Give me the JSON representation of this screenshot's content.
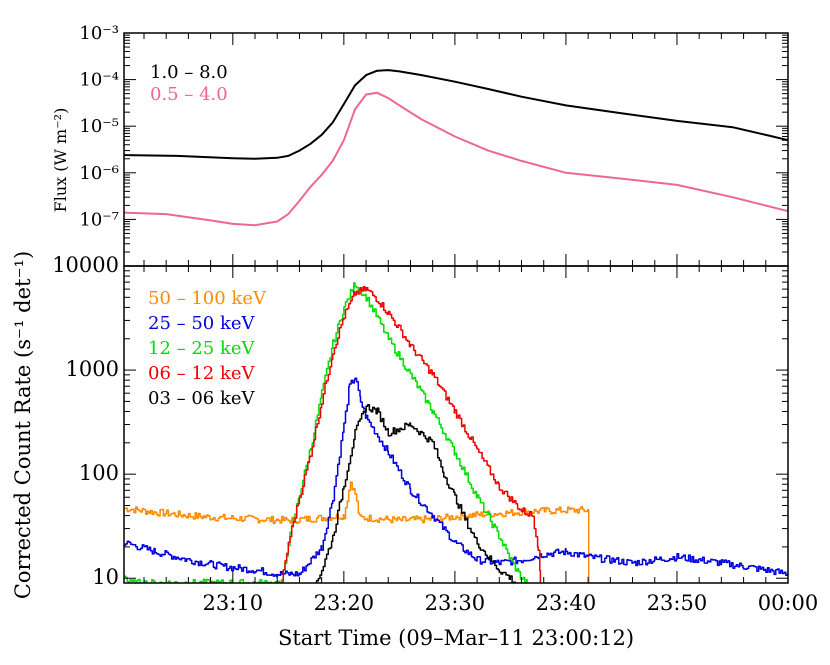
{
  "chart_data": [
    {
      "type": "line",
      "ylabel": "Flux (W m⁻²)",
      "xlabel": "",
      "yscale": "log",
      "ylim": [
        1e-08,
        0.001
      ],
      "xlim": [
        0.2,
        60
      ],
      "yticks": [
        {
          "label": "10⁻³",
          "value": 0.001
        },
        {
          "label": "10⁻⁴",
          "value": 0.0001
        },
        {
          "label": "10⁻⁵",
          "value": 1e-05
        },
        {
          "label": "10⁻⁶",
          "value": 1e-06
        },
        {
          "label": "10⁻⁷",
          "value": 1e-07
        }
      ],
      "legend": "top-left",
      "series": [
        {
          "name": "1.0 – 8.0",
          "color": "#000000",
          "x": [
            0.2,
            5,
            10,
            12,
            14,
            15,
            16,
            17,
            18,
            19,
            20,
            21,
            22,
            23,
            24,
            25,
            27,
            30,
            33,
            36,
            40,
            45,
            50,
            55,
            58,
            60
          ],
          "y": [
            2.4e-06,
            2.3e-06,
            2.05e-06,
            2e-06,
            2.1e-06,
            2.3e-06,
            3e-06,
            4.2e-06,
            6.5e-06,
            1.2e-05,
            3e-05,
            7.5e-05,
            0.000125,
            0.000155,
            0.00016,
            0.00015,
            0.000125,
            9e-05,
            6.3e-05,
            4.3e-05,
            2.8e-05,
            1.9e-05,
            1.3e-05,
            9.5e-06,
            6.5e-06,
            5e-06
          ]
        },
        {
          "name": "0.5 – 4.0",
          "color": "#ee6699",
          "x": [
            0.2,
            4,
            8,
            10,
            12,
            14,
            15,
            16,
            17,
            18,
            19,
            20,
            21,
            22,
            23,
            24,
            25,
            27,
            30,
            33,
            36,
            40,
            45,
            50,
            55,
            60
          ],
          "y": [
            1.4e-07,
            1.3e-07,
            9.5e-08,
            8e-08,
            7.5e-08,
            9e-08,
            1.3e-07,
            2.5e-07,
            5e-07,
            9e-07,
            1.8e-06,
            5e-06,
            2.3e-05,
            4.8e-05,
            5.2e-05,
            4e-05,
            2.8e-05,
            1.4e-05,
            6e-06,
            3e-06,
            1.8e-06,
            1e-06,
            7.5e-07,
            5.5e-07,
            3e-07,
            1.5e-07
          ]
        }
      ]
    },
    {
      "type": "line",
      "ylabel": "Corrected Count Rate (s⁻¹ det⁻¹)",
      "xlabel": "Start Time (09–Mar–11 23:00:12)",
      "yscale": "log",
      "ylim": [
        9,
        10000
      ],
      "xlim": [
        0.2,
        60
      ],
      "yticks": [
        {
          "label": "10",
          "value": 10
        },
        {
          "label": "100",
          "value": 100
        },
        {
          "label": "1000",
          "value": 1000
        },
        {
          "label": "10000",
          "value": 10000
        }
      ],
      "xticks": [
        {
          "label": "23:10",
          "value": 10
        },
        {
          "label": "23:20",
          "value": 20
        },
        {
          "label": "23:30",
          "value": 30
        },
        {
          "label": "23:40",
          "value": 40
        },
        {
          "label": "23:50",
          "value": 50
        },
        {
          "label": "00:00",
          "value": 60
        }
      ],
      "legend": "top-left",
      "series": [
        {
          "name": "50 – 100 keV",
          "color": "#ff8c00",
          "x": [
            0.2,
            3,
            6,
            9,
            12,
            15,
            18,
            20,
            20.6,
            21,
            21.4,
            22,
            25,
            28,
            31,
            34,
            37,
            40,
            42,
            42.05
          ],
          "y": [
            47,
            43,
            40,
            38,
            37,
            36,
            38,
            40,
            85,
            65,
            38,
            38,
            36,
            37,
            40,
            42,
            44,
            45,
            45,
            5
          ]
        },
        {
          "name": "25 – 50 keV",
          "color": "#0000dd",
          "x": [
            0.2,
            3,
            6,
            9,
            12,
            14,
            16,
            18,
            19,
            20,
            20.5,
            21,
            21.5,
            22,
            24,
            26,
            28,
            30,
            32,
            34,
            36,
            38,
            40,
            42,
            44,
            46,
            48,
            50,
            52,
            54,
            56,
            58,
            60
          ],
          "y": [
            22,
            18,
            15,
            13,
            12,
            11,
            11,
            20,
            60,
            300,
            700,
            850,
            500,
            350,
            160,
            70,
            40,
            22,
            15,
            14,
            15,
            17,
            18,
            16,
            15,
            14,
            15,
            16,
            15,
            14,
            13,
            12,
            11
          ]
        },
        {
          "name": "12 – 25 keV",
          "color": "#00dd00",
          "x": [
            0.2,
            0.6,
            14.4,
            15,
            16,
            17,
            18,
            19,
            20,
            21,
            22,
            23,
            24,
            26,
            28,
            30,
            32,
            34,
            35,
            36,
            36.5
          ],
          "y": [
            11,
            9,
            9,
            22,
            65,
            180,
            600,
            1800,
            4000,
            6800,
            5000,
            3200,
            2000,
            900,
            400,
            160,
            60,
            25,
            15,
            10,
            9
          ]
        },
        {
          "name": "06 – 12 keV",
          "color": "#ee0000",
          "x": [
            14.4,
            15,
            16,
            17,
            18,
            19,
            20,
            21,
            22,
            23,
            24,
            25,
            26,
            28,
            30,
            32,
            34,
            36,
            37,
            37.5,
            37.7
          ],
          "y": [
            9,
            22,
            60,
            160,
            500,
            1500,
            3300,
            5500,
            6000,
            4800,
            3500,
            2500,
            1700,
            900,
            400,
            170,
            75,
            45,
            40,
            20,
            9
          ]
        },
        {
          "name": "03 – 06 keV",
          "color": "#000000",
          "x": [
            17.4,
            18,
            19,
            20,
            21,
            22,
            23,
            24,
            26,
            28,
            29,
            30,
            31,
            32,
            33,
            34,
            35,
            35.5
          ],
          "y": [
            9,
            12,
            25,
            80,
            250,
            450,
            400,
            250,
            300,
            200,
            100,
            60,
            35,
            22,
            16,
            12,
            10,
            9
          ]
        }
      ]
    }
  ]
}
